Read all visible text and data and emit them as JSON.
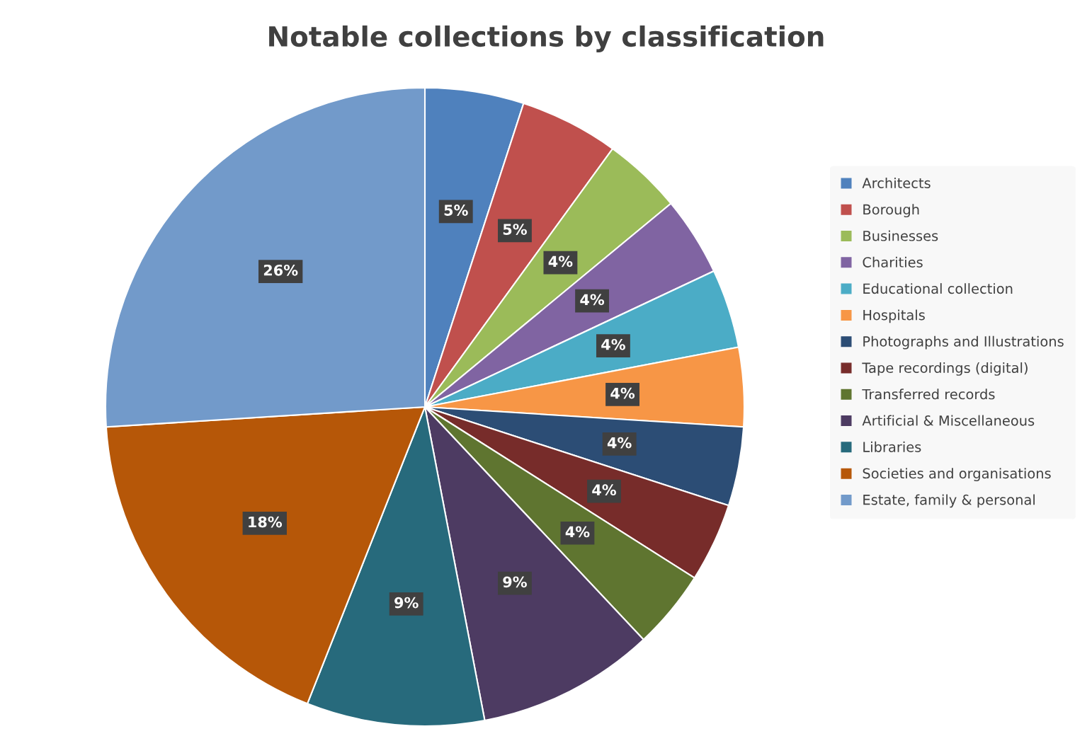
{
  "chart_data": {
    "type": "pie",
    "title": "Notable collections by classification",
    "categories": [
      "Architects",
      "Borough",
      "Businesses",
      "Charities",
      "Educational collection",
      "Hospitals",
      "Photographs and Illustrations",
      "Tape recordings (digital)",
      "Transferred records",
      "Artificial & Miscellaneous",
      "Libraries",
      "Societies and organisations",
      "Estate, family & personal"
    ],
    "values": [
      5,
      5,
      4,
      4,
      4,
      4,
      4,
      4,
      4,
      9,
      9,
      18,
      26
    ],
    "value_labels": [
      "5%",
      "5%",
      "4%",
      "4%",
      "4%",
      "4%",
      "4%",
      "4%",
      "4%",
      "9%",
      "9%",
      "18%",
      "26%"
    ],
    "colors": [
      "#4f81bd",
      "#c0504d",
      "#9bbb59",
      "#8064a2",
      "#4bacc6",
      "#f79646",
      "#2c4d75",
      "#772c2a",
      "#5f7530",
      "#4d3b62",
      "#276a7c",
      "#b65708",
      "#729aca"
    ],
    "legend": "right"
  }
}
